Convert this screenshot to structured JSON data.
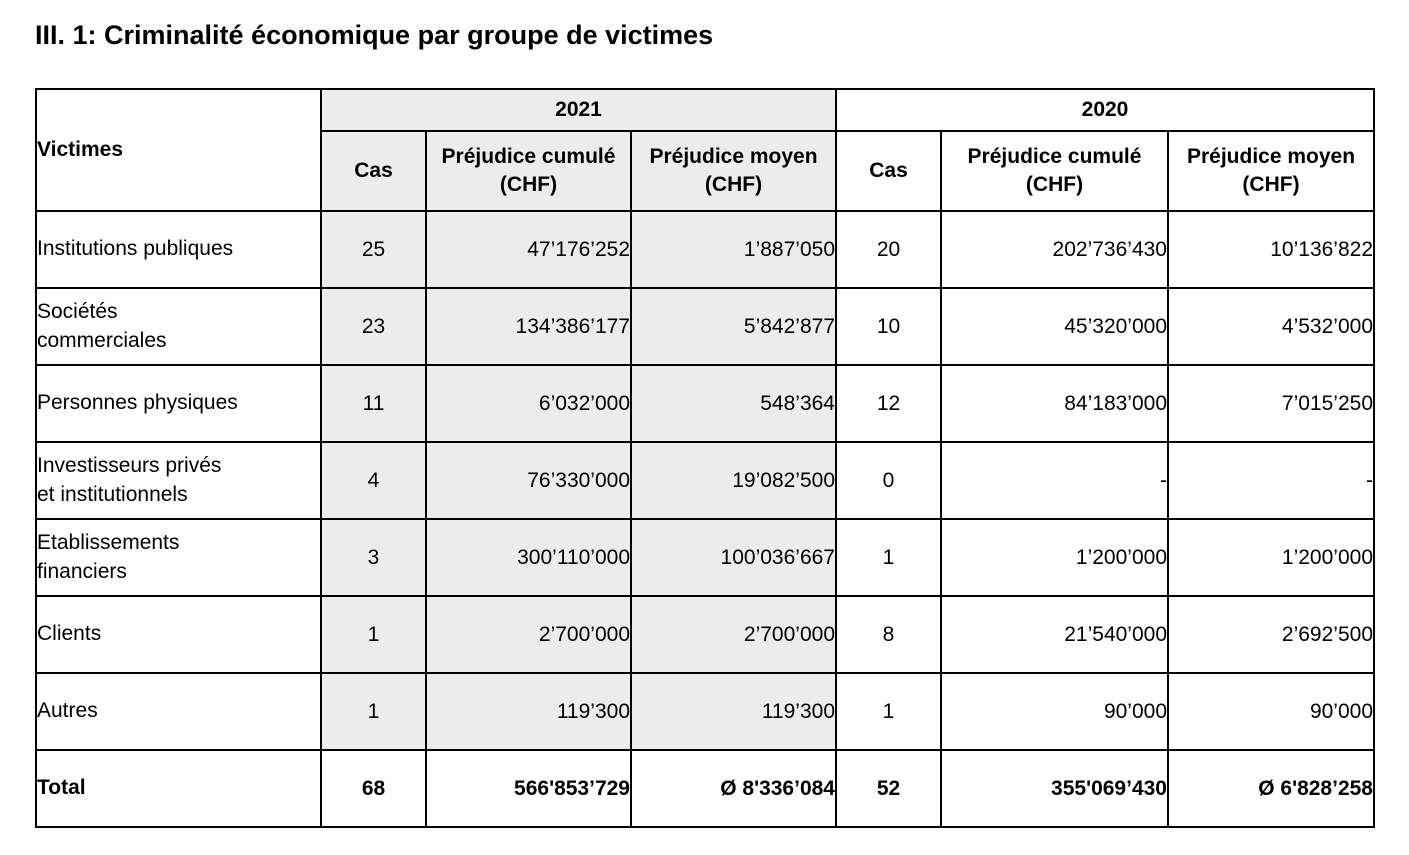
{
  "title": "III. 1: Criminalité économique par groupe de victimes",
  "colors": {
    "highlight_gray": "#ececec",
    "border": "#000000",
    "background": "#ffffff",
    "text": "#000000"
  },
  "table": {
    "corner_header": "Victimes",
    "groups": [
      {
        "year": "2021",
        "sub_columns": [
          "Cas",
          "Préjudice cumulé (CHF)",
          "Préjudice moyen (CHF)"
        ]
      },
      {
        "year": "2020",
        "sub_columns": [
          "Cas",
          "Préjudice cumulé (CHF)",
          "Préjudice moyen (CHF)"
        ]
      }
    ],
    "rows": [
      {
        "victim": "Institutions publiques",
        "cells": [
          "25",
          "47’176’252",
          "1’887’050",
          "20",
          "202’736’430",
          "10’136’822"
        ]
      },
      {
        "victim": "Sociétés\ncommerciales",
        "cells": [
          "23",
          "134’386’177",
          "5’842’877",
          "10",
          "45’320’000",
          "4’532’000"
        ]
      },
      {
        "victim": "Personnes physiques",
        "cells": [
          "11",
          "6’032’000",
          "548’364",
          "12",
          "84’183’000",
          "7’015’250"
        ]
      },
      {
        "victim": "Investisseurs privés\net institutionnels",
        "cells": [
          "4",
          "76’330’000",
          "19’082’500",
          "0",
          "-",
          "-"
        ]
      },
      {
        "victim": "Etablissements\nfinanciers",
        "cells": [
          "3",
          "300’110’000",
          "100’036’667",
          "1",
          "1’200’000",
          "1’200’000"
        ]
      },
      {
        "victim": "Clients",
        "cells": [
          "1",
          "2’700’000",
          "2’700’000",
          "8",
          "21’540’000",
          "2’692’500"
        ]
      },
      {
        "victim": "Autres",
        "cells": [
          "1",
          "119’300",
          "119’300",
          "1",
          "90’000",
          "90’000"
        ]
      }
    ],
    "total_row": {
      "label": "Total",
      "cells": [
        "68",
        "566'853’729",
        "Ø 8'336’084",
        "52",
        "355'069’430",
        "Ø 6'828’258"
      ]
    }
  }
}
